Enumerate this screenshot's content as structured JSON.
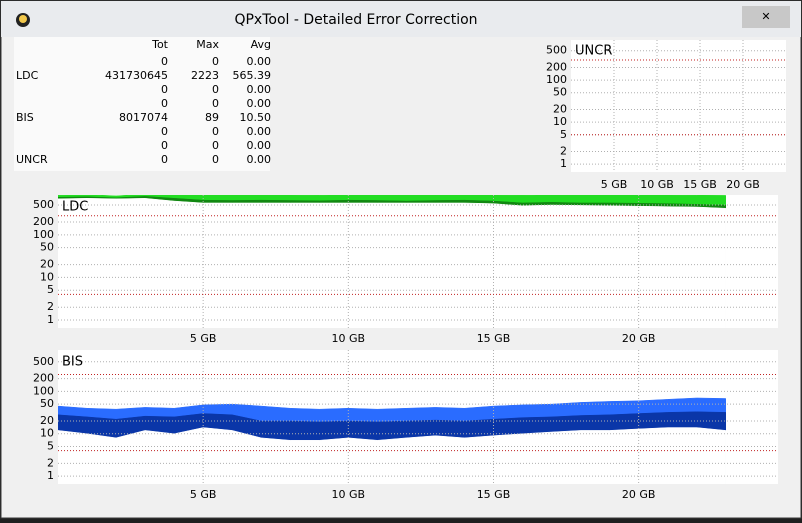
{
  "window": {
    "title": "QPxTool - Detailed Error Correction",
    "close": "✕"
  },
  "stats_table": {
    "headers": [
      "Tot",
      "Max",
      "Avg"
    ],
    "rows": [
      {
        "cells": [
          "0",
          "0",
          "0.00"
        ]
      },
      {
        "label": "LDC",
        "cells": [
          "431730645",
          "2223",
          "565.39"
        ]
      },
      {
        "cells": [
          "0",
          "0",
          "0.00"
        ]
      },
      {
        "cells": [
          "0",
          "0",
          "0.00"
        ]
      },
      {
        "label": "BIS",
        "cells": [
          "8017074",
          "89",
          "10.50"
        ]
      },
      {
        "cells": [
          "0",
          "0",
          "0.00"
        ]
      },
      {
        "cells": [
          "0",
          "0",
          "0.00"
        ]
      },
      {
        "label": "UNCR",
        "cells": [
          "0",
          "0",
          "0.00"
        ]
      }
    ]
  },
  "chart_data": [
    {
      "type": "area",
      "title": "UNCR",
      "log_y": true,
      "grid": true,
      "xlim": [
        0,
        25
      ],
      "ylim": [
        0.65,
        900
      ],
      "xticks": [
        {
          "value": 5,
          "label": "5 GB"
        },
        {
          "value": 10,
          "label": "10 GB"
        },
        {
          "value": 15,
          "label": "15 GB"
        },
        {
          "value": 20,
          "label": "20 GB"
        }
      ],
      "yticks": [
        1,
        2,
        5,
        10,
        20,
        50,
        100,
        200,
        500
      ],
      "thresholds": [
        300,
        5
      ],
      "x": [],
      "series": []
    },
    {
      "type": "area",
      "title": "LDC",
      "log_y": true,
      "grid": true,
      "xlim": [
        0,
        24.8
      ],
      "ylim": [
        0.65,
        860
      ],
      "xticks": [
        {
          "value": 5,
          "label": "5 GB"
        },
        {
          "value": 10,
          "label": "10 GB"
        },
        {
          "value": 15,
          "label": "15 GB"
        },
        {
          "value": 20,
          "label": "20 GB"
        }
      ],
      "yticks": [
        1,
        2,
        5,
        10,
        20,
        50,
        100,
        200,
        500
      ],
      "thresholds": [
        280,
        4
      ],
      "x": [
        0,
        1,
        2,
        3,
        4,
        5,
        6,
        7,
        8,
        9,
        10,
        11,
        12,
        13,
        14,
        15,
        16,
        17,
        18,
        19,
        20,
        21,
        22,
        23
      ],
      "series": [
        {
          "color": "#22dd22",
          "values": [
            850,
            880,
            820,
            900,
            880,
            860,
            870,
            880,
            860,
            850,
            880,
            870,
            860,
            870,
            880,
            860,
            850,
            870,
            860,
            880,
            870,
            860,
            850,
            840
          ]
        },
        {
          "color": "#118811",
          "values": [
            760,
            780,
            740,
            800,
            720,
            650,
            640,
            650,
            640,
            630,
            650,
            640,
            620,
            640,
            650,
            620,
            560,
            580,
            560,
            560,
            550,
            540,
            520,
            500
          ]
        },
        {
          "color": "#ffffff",
          "values": [
            700,
            720,
            700,
            720,
            620,
            560,
            560,
            560,
            560,
            560,
            560,
            560,
            560,
            560,
            560,
            540,
            480,
            500,
            490,
            480,
            470,
            460,
            450,
            420
          ]
        }
      ]
    },
    {
      "type": "area",
      "title": "BIS",
      "log_y": true,
      "grid": true,
      "xlim": [
        0,
        24.8
      ],
      "ylim": [
        0.65,
        950
      ],
      "xticks": [
        {
          "value": 5,
          "label": "5 GB"
        },
        {
          "value": 10,
          "label": "10 GB"
        },
        {
          "value": 15,
          "label": "15 GB"
        },
        {
          "value": 20,
          "label": "20 GB"
        }
      ],
      "yticks": [
        1,
        2,
        5,
        10,
        20,
        50,
        100,
        200,
        500
      ],
      "thresholds": [
        250,
        4
      ],
      "x": [
        0,
        1,
        2,
        3,
        4,
        5,
        6,
        7,
        8,
        9,
        10,
        11,
        12,
        13,
        14,
        15,
        16,
        17,
        18,
        19,
        20,
        21,
        22,
        23
      ],
      "series": [
        {
          "color": "#2a6cff",
          "values": [
            45,
            40,
            38,
            42,
            40,
            48,
            50,
            45,
            40,
            38,
            40,
            38,
            40,
            42,
            40,
            45,
            48,
            50,
            55,
            58,
            60,
            65,
            70,
            68
          ]
        },
        {
          "color": "#0a36a8",
          "values": [
            28,
            25,
            22,
            26,
            25,
            30,
            28,
            20,
            20,
            19,
            20,
            19,
            20,
            21,
            20,
            22,
            24,
            25,
            27,
            28,
            30,
            32,
            33,
            32
          ]
        },
        {
          "color": "#ffffff",
          "values": [
            12,
            10,
            8,
            12,
            10,
            14,
            12,
            8,
            7,
            7,
            8,
            7,
            8,
            9,
            8,
            9,
            10,
            11,
            12,
            12,
            13,
            14,
            14,
            12
          ]
        }
      ]
    }
  ]
}
